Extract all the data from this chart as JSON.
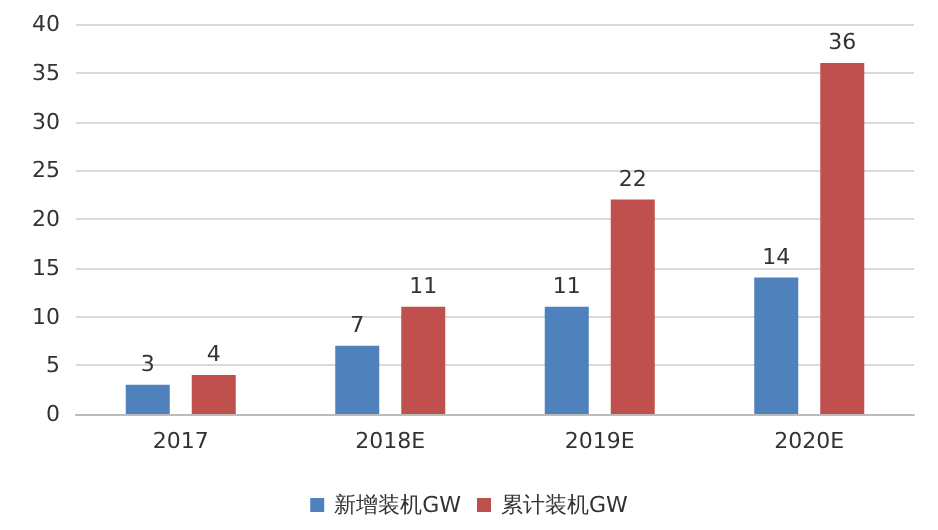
{
  "chart_data": {
    "type": "bar",
    "categories": [
      "2017",
      "2018E",
      "2019E",
      "2020E"
    ],
    "series": [
      {
        "name": "新增装机GW",
        "color": "#4f81bd",
        "values": [
          3,
          7,
          11,
          14
        ]
      },
      {
        "name": "累计装机GW",
        "color": "#c0504d",
        "values": [
          4,
          11,
          22,
          36
        ]
      }
    ],
    "ylim": [
      0,
      40
    ],
    "yticks": [
      0,
      5,
      10,
      15,
      20,
      25,
      30,
      35,
      40
    ],
    "grid": "y",
    "legend": "bottom",
    "data_labels": true
  }
}
